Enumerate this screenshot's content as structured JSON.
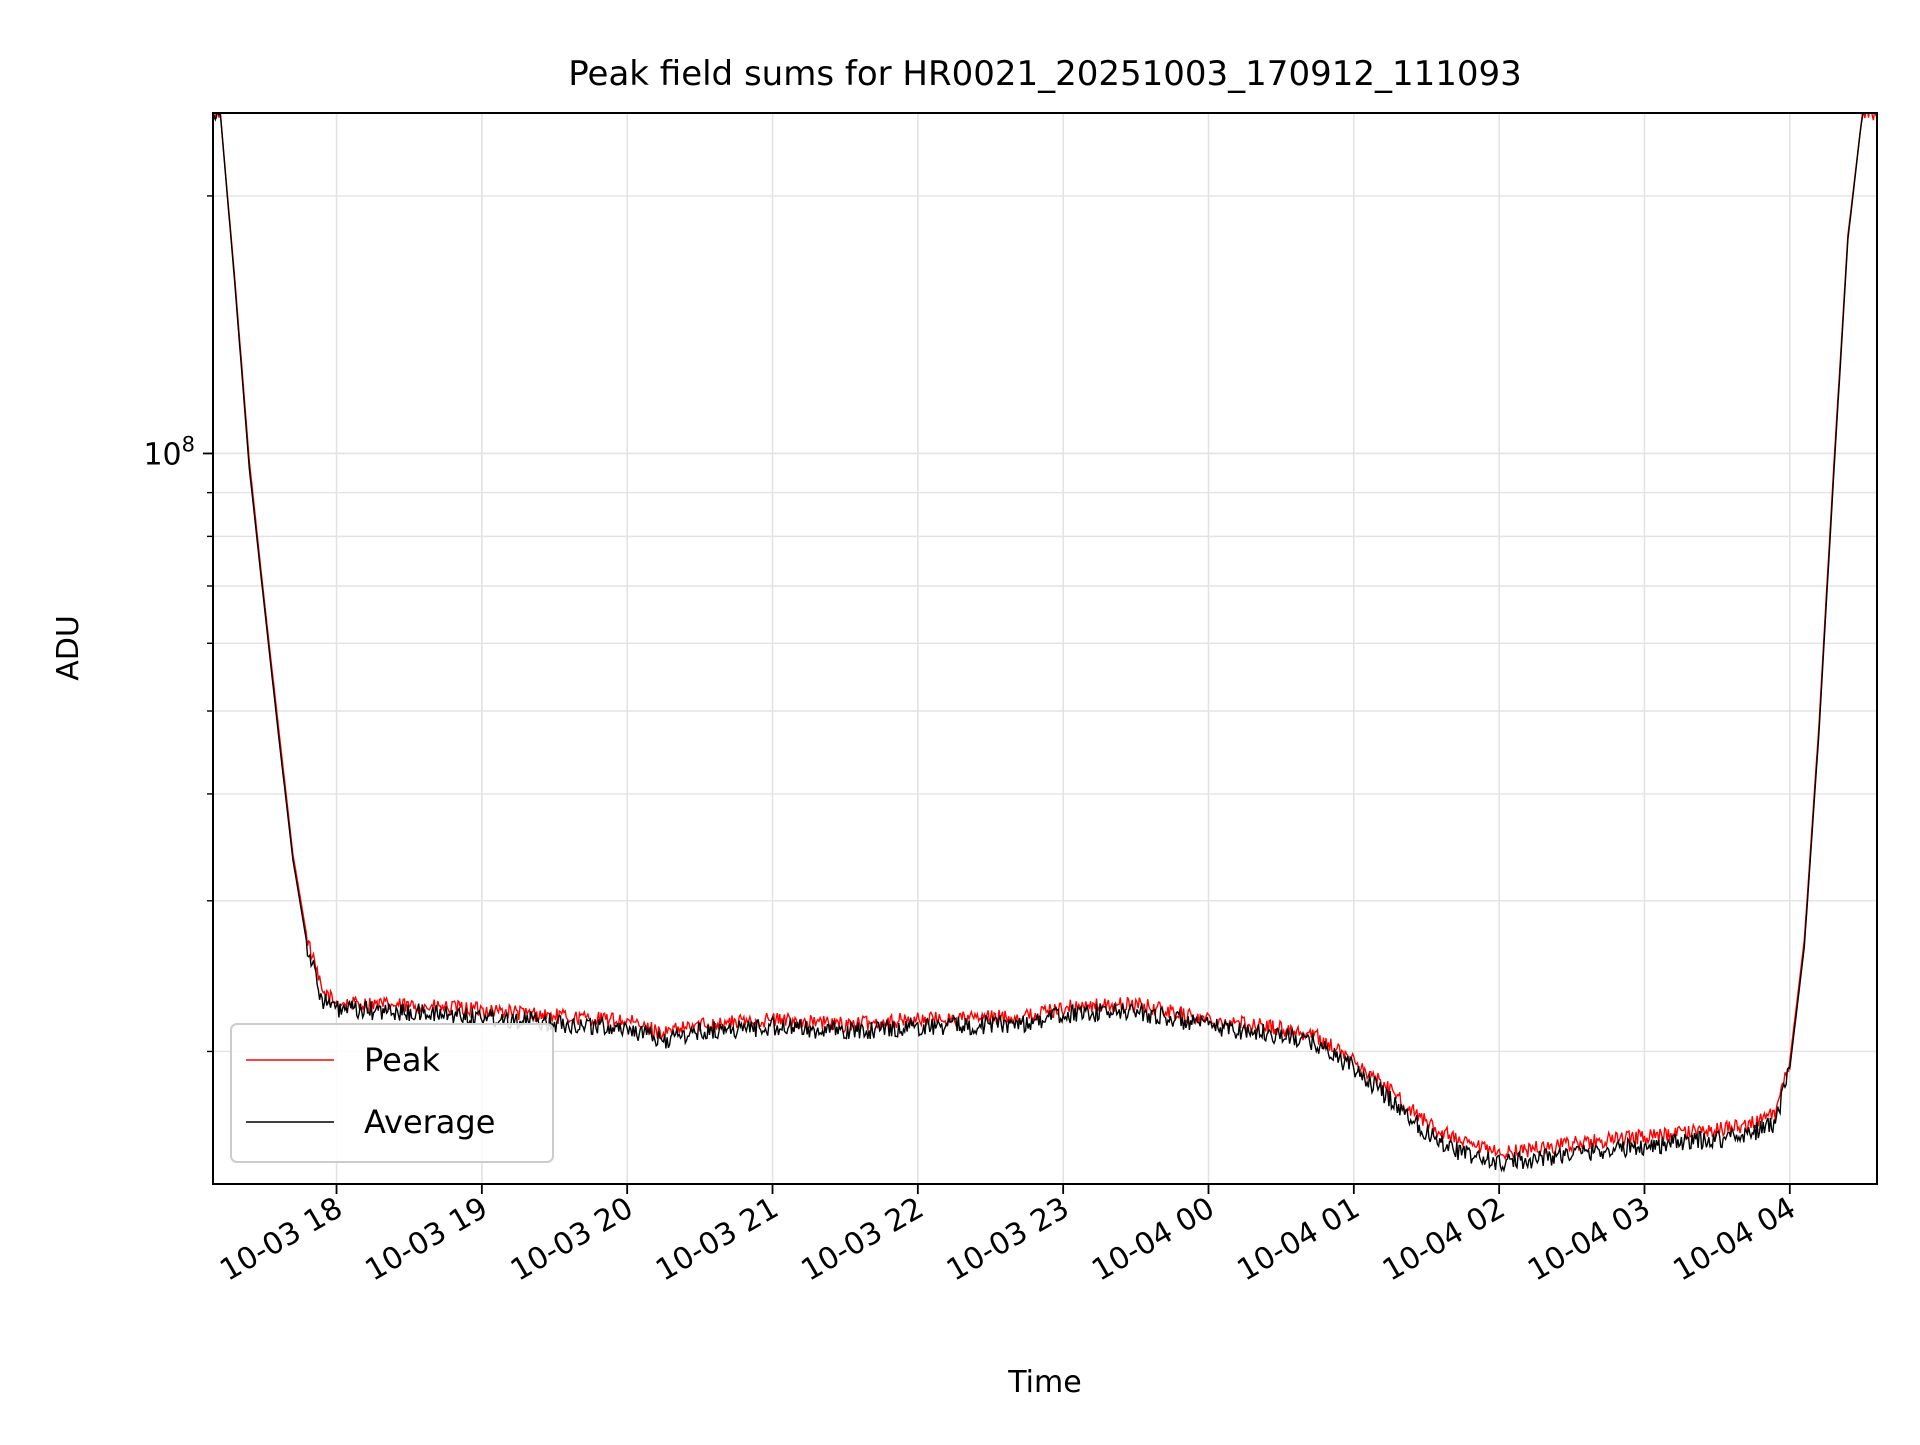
{
  "chart_data": {
    "type": "line",
    "title": "Peak field sums for HR0021_20251003_170912_111093",
    "xlabel": "Time",
    "ylabel": "ADU",
    "y_scale": "log",
    "ylim": [
      14000000,
      250000000
    ],
    "xlim": [
      "2025-10-03 17:09",
      "2025-10-04 04:36"
    ],
    "x_ticks": [
      "10-03 18",
      "10-03 19",
      "10-03 20",
      "10-03 21",
      "10-03 22",
      "10-03 23",
      "10-04 00",
      "10-04 01",
      "10-04 02",
      "10-04 03",
      "10-04 04"
    ],
    "y_major_tick": {
      "value": 100000000,
      "base": "10",
      "exponent": "8"
    },
    "grid": true,
    "legend_position": "lower-left",
    "colors": {
      "Peak": "#ff0000",
      "Average": "#000000"
    },
    "series": [
      {
        "name": "Peak",
        "x": [
          "2025-10-03 17:09",
          "2025-10-03 17:12",
          "2025-10-03 17:18",
          "2025-10-03 17:24",
          "2025-10-03 17:30",
          "2025-10-03 17:36",
          "2025-10-03 17:42",
          "2025-10-03 17:48",
          "2025-10-03 17:54",
          "2025-10-03 18:00",
          "2025-10-03 18:30",
          "2025-10-03 19:00",
          "2025-10-03 19:30",
          "2025-10-03 20:00",
          "2025-10-03 20:15",
          "2025-10-03 20:30",
          "2025-10-03 21:00",
          "2025-10-03 21:30",
          "2025-10-03 22:00",
          "2025-10-03 22:30",
          "2025-10-03 22:45",
          "2025-10-03 23:00",
          "2025-10-03 23:30",
          "2025-10-04 00:00",
          "2025-10-04 00:30",
          "2025-10-04 00:45",
          "2025-10-04 01:00",
          "2025-10-04 01:15",
          "2025-10-04 01:30",
          "2025-10-04 01:45",
          "2025-10-04 02:00",
          "2025-10-04 02:30",
          "2025-10-04 03:00",
          "2025-10-04 03:30",
          "2025-10-04 03:45",
          "2025-10-04 03:54",
          "2025-10-04 04:00",
          "2025-10-04 04:06",
          "2025-10-04 04:12",
          "2025-10-04 04:18",
          "2025-10-04 04:24",
          "2025-10-04 04:30",
          "2025-10-04 04:36"
        ],
        "values": [
          250000000,
          250000000,
          160000000,
          98000000,
          68000000,
          48000000,
          34000000,
          27000000,
          23500000,
          22800000,
          22600000,
          22400000,
          22000000,
          21700000,
          21000000,
          21500000,
          21800000,
          21500000,
          21800000,
          21900000,
          22000000,
          22500000,
          22700000,
          21800000,
          21300000,
          20800000,
          19500000,
          18000000,
          16500000,
          15600000,
          15200000,
          15600000,
          15900000,
          16200000,
          16500000,
          16900000,
          19500000,
          27000000,
          48000000,
          95000000,
          180000000,
          250000000,
          250000000
        ]
      },
      {
        "name": "Average",
        "x": [
          "2025-10-03 17:09",
          "2025-10-03 17:12",
          "2025-10-03 17:18",
          "2025-10-03 17:24",
          "2025-10-03 17:30",
          "2025-10-03 17:36",
          "2025-10-03 17:42",
          "2025-10-03 17:48",
          "2025-10-03 17:54",
          "2025-10-03 18:00",
          "2025-10-03 18:30",
          "2025-10-03 19:00",
          "2025-10-03 19:30",
          "2025-10-03 20:00",
          "2025-10-03 20:15",
          "2025-10-03 20:30",
          "2025-10-03 21:00",
          "2025-10-03 21:30",
          "2025-10-03 22:00",
          "2025-10-03 22:30",
          "2025-10-03 22:45",
          "2025-10-03 23:00",
          "2025-10-03 23:30",
          "2025-10-04 00:00",
          "2025-10-04 00:30",
          "2025-10-04 00:45",
          "2025-10-04 01:00",
          "2025-10-04 01:15",
          "2025-10-04 01:30",
          "2025-10-04 01:45",
          "2025-10-04 02:00",
          "2025-10-04 02:30",
          "2025-10-04 03:00",
          "2025-10-04 03:30",
          "2025-10-04 03:45",
          "2025-10-04 03:54",
          "2025-10-04 04:00",
          "2025-10-04 04:06",
          "2025-10-04 04:12",
          "2025-10-04 04:18",
          "2025-10-04 04:24",
          "2025-10-04 04:30",
          "2025-10-04 04:36"
        ],
        "values": [
          250000000,
          250000000,
          158000000,
          96000000,
          67000000,
          47000000,
          33500000,
          26500000,
          23000000,
          22400000,
          22200000,
          22000000,
          21600000,
          21300000,
          20600000,
          21100000,
          21400000,
          21100000,
          21400000,
          21500000,
          21600000,
          22100000,
          22300000,
          21400000,
          20900000,
          20400000,
          19100000,
          17600000,
          16100000,
          15200000,
          14800000,
          15200000,
          15500000,
          15800000,
          16100000,
          16500000,
          19100000,
          26500000,
          47000000,
          93000000,
          178000000,
          250000000,
          250000000
        ]
      }
    ]
  }
}
